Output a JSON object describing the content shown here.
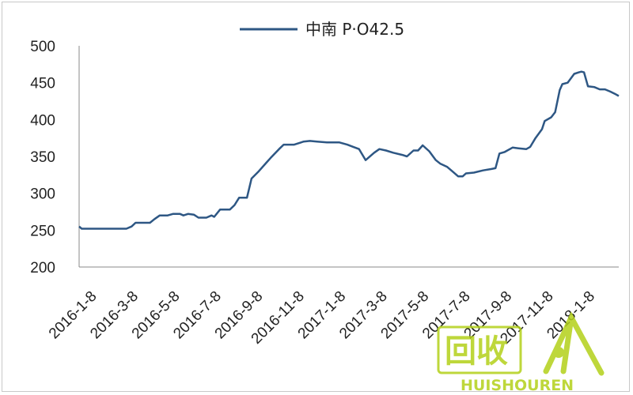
{
  "chart_data": {
    "type": "line",
    "title": "",
    "xlabel": "",
    "ylabel": "",
    "ylim": [
      200,
      500
    ],
    "yticks": [
      200,
      250,
      300,
      350,
      400,
      450,
      500
    ],
    "x_tick_labels": [
      "2016-1-8",
      "2016-3-8",
      "2016-5-8",
      "2016-7-8",
      "2016-9-8",
      "2016-11-8",
      "2017-1-8",
      "2017-3-8",
      "2017-5-8",
      "2017-7-8",
      "2017-9-8",
      "2017-11-8",
      "2018-1-8"
    ],
    "legend_position": "top-center",
    "grid": false,
    "series": [
      {
        "name": "中南 P·O42.5",
        "color": "#2e5784",
        "points": [
          [
            "2016-01-08",
            255
          ],
          [
            "2016-01-12",
            252
          ],
          [
            "2016-02-01",
            252
          ],
          [
            "2016-03-01",
            252
          ],
          [
            "2016-03-20",
            252
          ],
          [
            "2016-03-28",
            255
          ],
          [
            "2016-04-03",
            260
          ],
          [
            "2016-04-25",
            260
          ],
          [
            "2016-05-02",
            265
          ],
          [
            "2016-05-10",
            270
          ],
          [
            "2016-05-22",
            270
          ],
          [
            "2016-05-30",
            272
          ],
          [
            "2016-06-10",
            272
          ],
          [
            "2016-06-15",
            270
          ],
          [
            "2016-06-22",
            272
          ],
          [
            "2016-07-01",
            271
          ],
          [
            "2016-07-08",
            267
          ],
          [
            "2016-07-20",
            267
          ],
          [
            "2016-07-28",
            270
          ],
          [
            "2016-08-01",
            268
          ],
          [
            "2016-08-10",
            278
          ],
          [
            "2016-08-25",
            278
          ],
          [
            "2016-09-01",
            284
          ],
          [
            "2016-09-08",
            294
          ],
          [
            "2016-09-20",
            294
          ],
          [
            "2016-09-27",
            320
          ],
          [
            "2016-10-08",
            330
          ],
          [
            "2016-10-20",
            342
          ],
          [
            "2016-10-26",
            348
          ],
          [
            "2016-11-08",
            360
          ],
          [
            "2016-11-15",
            366
          ],
          [
            "2016-12-01",
            366
          ],
          [
            "2016-12-15",
            370
          ],
          [
            "2016-12-25",
            371
          ],
          [
            "2017-01-05",
            370
          ],
          [
            "2017-01-20",
            369
          ],
          [
            "2017-02-08",
            369
          ],
          [
            "2017-02-20",
            366
          ],
          [
            "2017-03-01",
            363
          ],
          [
            "2017-03-10",
            360
          ],
          [
            "2017-03-20",
            345
          ],
          [
            "2017-04-02",
            355
          ],
          [
            "2017-04-10",
            360
          ],
          [
            "2017-04-20",
            358
          ],
          [
            "2017-05-01",
            355
          ],
          [
            "2017-05-15",
            352
          ],
          [
            "2017-05-22",
            350
          ],
          [
            "2017-06-01",
            358
          ],
          [
            "2017-06-08",
            358
          ],
          [
            "2017-06-15",
            365
          ],
          [
            "2017-06-25",
            357
          ],
          [
            "2017-07-05",
            345
          ],
          [
            "2017-07-12",
            340
          ],
          [
            "2017-07-22",
            336
          ],
          [
            "2017-07-30",
            330
          ],
          [
            "2017-08-08",
            323
          ],
          [
            "2017-08-15",
            323
          ],
          [
            "2017-08-20",
            327
          ],
          [
            "2017-09-01",
            328
          ],
          [
            "2017-09-15",
            331
          ],
          [
            "2017-09-28",
            333
          ],
          [
            "2017-10-04",
            334
          ],
          [
            "2017-10-10",
            354
          ],
          [
            "2017-10-18",
            356
          ],
          [
            "2017-10-30",
            362
          ],
          [
            "2017-11-08",
            361
          ],
          [
            "2017-11-20",
            360
          ],
          [
            "2017-11-26",
            363
          ],
          [
            "2017-12-04",
            375
          ],
          [
            "2017-12-14",
            387
          ],
          [
            "2017-12-18",
            398
          ],
          [
            "2017-12-28",
            403
          ],
          [
            "2018-01-03",
            410
          ],
          [
            "2018-01-10",
            440
          ],
          [
            "2018-01-14",
            448
          ],
          [
            "2018-01-22",
            450
          ],
          [
            "2018-02-01",
            462
          ],
          [
            "2018-02-08",
            464
          ],
          [
            "2018-02-12",
            465
          ],
          [
            "2018-02-16",
            464
          ],
          [
            "2018-02-22",
            445
          ],
          [
            "2018-03-04",
            444
          ],
          [
            "2018-03-12",
            441
          ],
          [
            "2018-03-20",
            441
          ],
          [
            "2018-03-28",
            438
          ],
          [
            "2018-04-04",
            435
          ],
          [
            "2018-04-10",
            432
          ]
        ]
      }
    ]
  },
  "watermark": {
    "glyphs": "回收",
    "word": "HUISHOUREN",
    "color": "#b3d11a"
  }
}
